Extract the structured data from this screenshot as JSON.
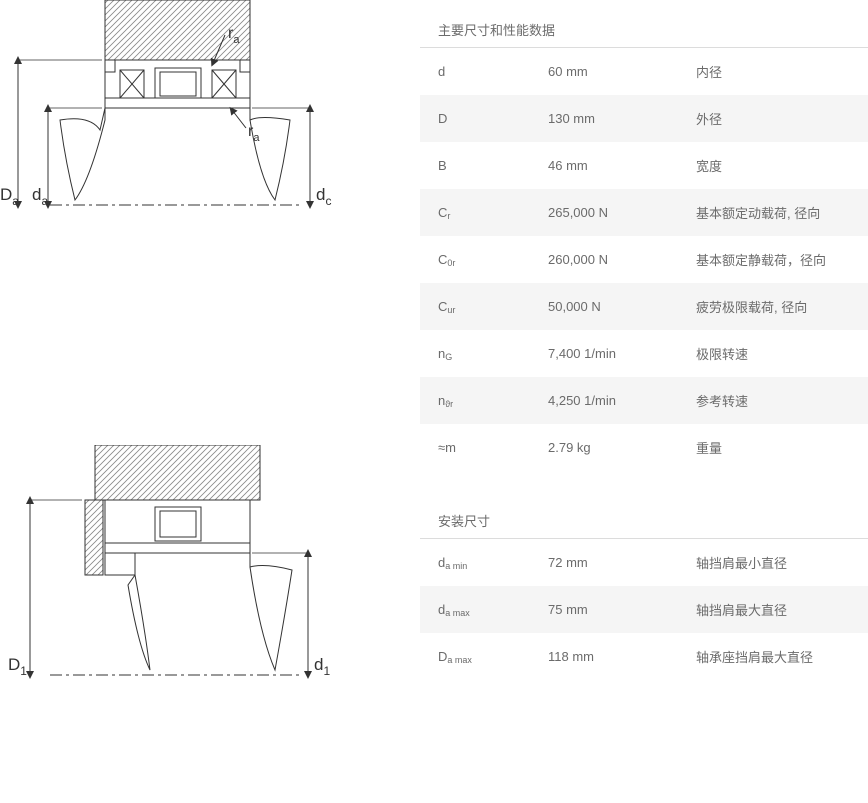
{
  "section1_title": "主要尺寸和性能数据",
  "section2_title": "安装尺寸",
  "rows1": [
    {
      "sym_html": "d",
      "val": "60 mm",
      "desc": "内径",
      "alt": false
    },
    {
      "sym_html": "D",
      "val": "130 mm",
      "desc": "外径",
      "alt": true
    },
    {
      "sym_html": "B",
      "val": "46 mm",
      "desc": "宽度",
      "alt": false
    },
    {
      "sym_html": "C<span class='sub'>r</span>",
      "val": "265,000 N",
      "desc": "基本额定动载荷, 径向",
      "alt": true
    },
    {
      "sym_html": "C<span class='sub'>0r</span>",
      "val": "260,000 N",
      "desc": "基本额定静载荷，径向",
      "alt": false
    },
    {
      "sym_html": "C<span class='sub'>ur</span>",
      "val": "50,000 N",
      "desc": "疲劳极限载荷, 径向",
      "alt": true
    },
    {
      "sym_html": "n<span class='sub'>G</span>",
      "val": "7,400 1/min",
      "desc": "极限转速",
      "alt": false
    },
    {
      "sym_html": "n<span class='sub'>ϑr</span>",
      "val": "4,250 1/min",
      "desc": "参考转速",
      "alt": true
    },
    {
      "sym_html": "≈m",
      "val": "2.79 kg",
      "desc": "重量",
      "alt": false
    }
  ],
  "rows2": [
    {
      "sym_html": "d<span class='sub'>a min</span>",
      "val": "72 mm",
      "desc": "轴挡肩最小直径",
      "alt": false
    },
    {
      "sym_html": "d<span class='sub'>a max</span>",
      "val": "75 mm",
      "desc": "轴挡肩最大直径",
      "alt": true
    },
    {
      "sym_html": "D<span class='sub'>a max</span>",
      "val": "118 mm",
      "desc": "轴承座挡肩最大直径",
      "alt": false
    }
  ],
  "diag_labels": {
    "Da": "D",
    "Da_sub": "a",
    "da": "d",
    "da_sub": "a",
    "dc": "d",
    "dc_sub": "c",
    "ra": "r",
    "ra_sub": "a",
    "D1": "D",
    "D1_sub": "1",
    "d1": "d",
    "d1_sub": "1"
  },
  "colors": {
    "hatch": "#888888",
    "line": "#333333",
    "text": "#333333",
    "light": "#f5f5f5"
  }
}
